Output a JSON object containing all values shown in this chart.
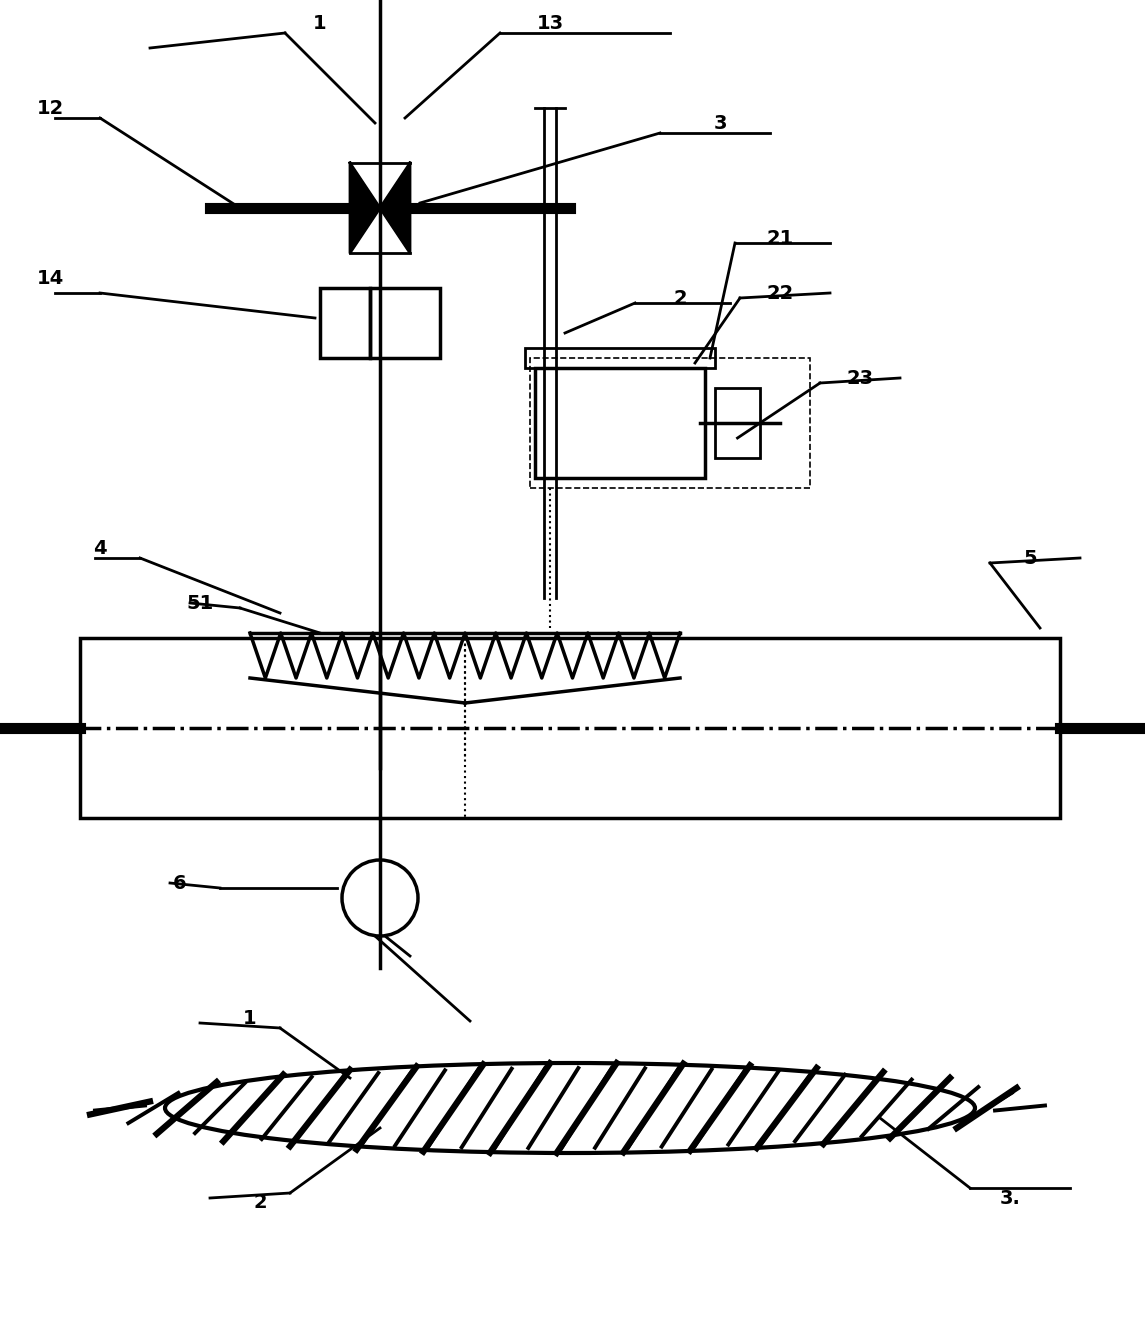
{
  "bg_color": "#ffffff",
  "line_color": "#000000",
  "figsize": [
    11.45,
    13.28
  ],
  "dpi": 100,
  "lw": 2.0,
  "lw_thick": 2.5,
  "lw_yarn": 8
}
